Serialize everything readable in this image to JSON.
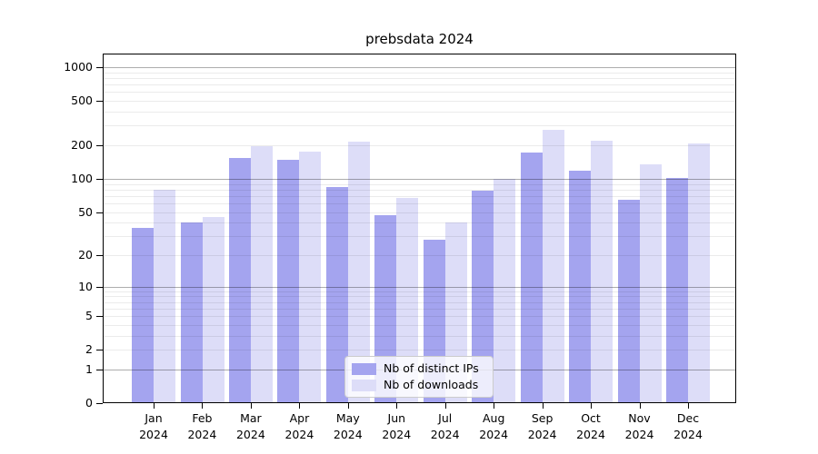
{
  "chart_data": {
    "type": "bar",
    "title": "prebsdata 2024",
    "categories": [
      "Jan",
      "Feb",
      "Mar",
      "Apr",
      "May",
      "Jun",
      "Jul",
      "Aug",
      "Sep",
      "Oct",
      "Nov",
      "Dec"
    ],
    "category_year": "2024",
    "series": [
      {
        "name": "Nb of distinct IPs",
        "color": "#a4a4ef",
        "values": [
          36,
          40,
          155,
          148,
          85,
          47,
          28,
          78,
          172,
          118,
          65,
          101
        ]
      },
      {
        "name": "Nb of downloads",
        "color": "#ddddf8",
        "values": [
          80,
          45,
          195,
          175,
          215,
          67,
          40,
          100,
          278,
          219,
          134,
          207
        ]
      }
    ],
    "y_axis": {
      "scale": "log10(1+value)",
      "ticks": [
        0,
        1,
        2,
        5,
        10,
        20,
        50,
        100,
        200,
        500,
        1000
      ],
      "major_gridlines": [
        1,
        10,
        100,
        1000
      ],
      "grid": true
    },
    "legend": {
      "position": "bottom-center"
    }
  }
}
